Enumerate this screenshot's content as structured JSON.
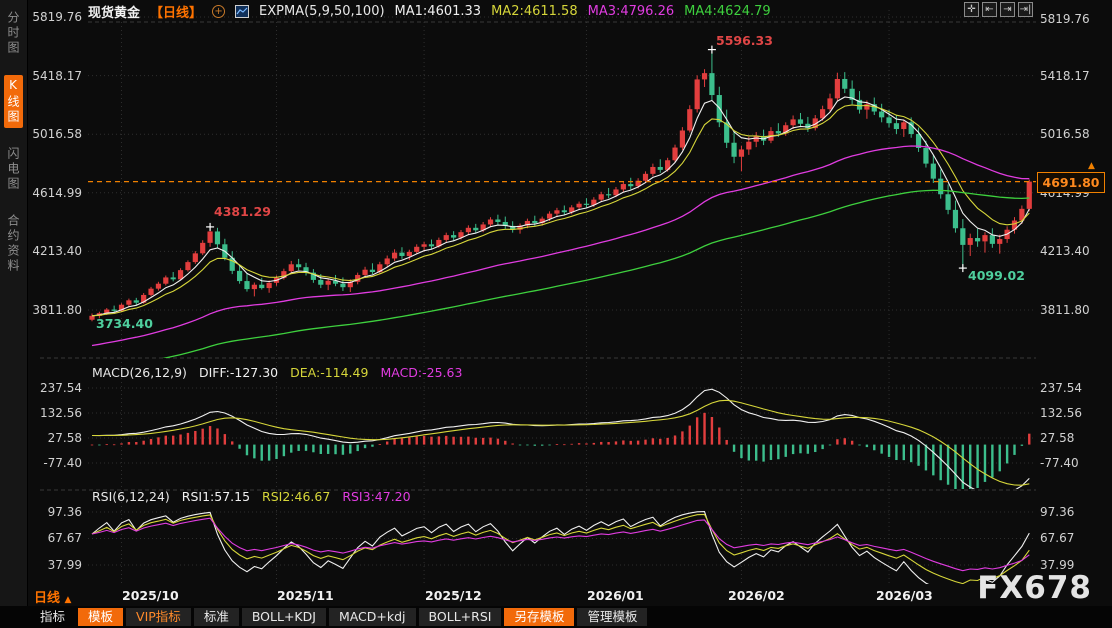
{
  "app": {
    "watermark": "FX678"
  },
  "sidebar": {
    "items": [
      {
        "label": "分时图",
        "active": false
      },
      {
        "label": "K线图",
        "active": true
      },
      {
        "label": "闪电图",
        "active": false
      },
      {
        "label": "合约资料",
        "active": false
      }
    ]
  },
  "header": {
    "symbol": "现货黄金",
    "period": "【日线】",
    "indicator": "EXPMA(5,9,50,100)",
    "ma1": "MA1:4601.33",
    "ma2": "MA2:4611.58",
    "ma3": "MA3:4796.26",
    "ma4": "MA4:4624.79"
  },
  "axes": {
    "price": [
      "5819.76",
      "5418.17",
      "5016.58",
      "4614.99",
      "4213.40",
      "3811.80"
    ],
    "macd": [
      "237.54",
      "132.56",
      "27.58",
      "-77.40"
    ],
    "rsi": [
      "97.36",
      "67.67",
      "37.99"
    ],
    "dates": [
      "2025/10",
      "2025/11",
      "2025/12",
      "2026/01",
      "2026/02",
      "2026/03"
    ]
  },
  "annotations": {
    "high1": "4381.29",
    "high2": "5596.33",
    "low1": "4099.02",
    "low2": "3734.40",
    "last_price": "4691.80"
  },
  "macd_panel": {
    "title": "MACD(26,12,9)",
    "diff": "DIFF:-127.30",
    "dea": "DEA:-114.49",
    "macd": "MACD:-25.63"
  },
  "rsi_panel": {
    "title": "RSI(6,12,24)",
    "rsi1": "RSI1:57.15",
    "rsi2": "RSI2:46.67",
    "rsi3": "RSI3:47.20"
  },
  "bottom": {
    "period_label": "日线",
    "tabs": [
      {
        "label": "指标",
        "style": "plain"
      },
      {
        "label": "模板",
        "style": "orange"
      },
      {
        "label": "VIP指标",
        "style": "vip"
      },
      {
        "label": "标准",
        "style": "dark"
      },
      {
        "label": "BOLL+KDJ",
        "style": "dark"
      },
      {
        "label": "MACD+kdj",
        "style": "dark"
      },
      {
        "label": "BOLL+RSI",
        "style": "dark"
      },
      {
        "label": "另存模板",
        "style": "orange"
      },
      {
        "label": "管理模板",
        "style": "dark"
      }
    ]
  },
  "colors": {
    "up": "#e23e3e",
    "down": "#3cbe8c",
    "ma1": "#f0f0f0",
    "ma2": "#d6d63a",
    "ma3": "#e03ce0",
    "ma4": "#3ed03e",
    "accent": "#f08000",
    "grid": "#2e2e2e"
  },
  "chart_data": {
    "type": "candlestick",
    "symbol": "现货黄金",
    "period": "日线",
    "last_price": 4691.8,
    "price_levels": [
      5819.76,
      5418.17,
      5016.58,
      4614.99,
      4213.4,
      3811.8
    ],
    "macd_levels": [
      237.54,
      132.56,
      27.58,
      -77.4
    ],
    "rsi_levels": [
      97.36,
      67.67,
      37.99
    ],
    "month_start_indices": [
      4,
      25,
      45,
      67,
      88,
      108
    ],
    "expma_periods": [
      5,
      9,
      50,
      100
    ],
    "macd_params": [
      26,
      12,
      9
    ],
    "rsi_periods": [
      6,
      12,
      24
    ],
    "markers": [
      {
        "i": 16,
        "price": 4381.29
      },
      {
        "i": 84,
        "price": 5596.33
      },
      {
        "i": 118,
        "price": 4099.02
      }
    ],
    "candles": [
      [
        3745,
        3788,
        3734.4,
        3772
      ],
      [
        3772,
        3800,
        3755,
        3790
      ],
      [
        3790,
        3825,
        3778,
        3815
      ],
      [
        3815,
        3842,
        3798,
        3806
      ],
      [
        3806,
        3858,
        3800,
        3848
      ],
      [
        3848,
        3890,
        3836,
        3878
      ],
      [
        3878,
        3895,
        3845,
        3862
      ],
      [
        3862,
        3928,
        3855,
        3915
      ],
      [
        3915,
        3970,
        3905,
        3958
      ],
      [
        3958,
        4005,
        3945,
        3992
      ],
      [
        3992,
        4048,
        3980,
        4035
      ],
      [
        4035,
        4072,
        4008,
        4022
      ],
      [
        4022,
        4098,
        4015,
        4085
      ],
      [
        4085,
        4152,
        4075,
        4140
      ],
      [
        4140,
        4215,
        4128,
        4200
      ],
      [
        4200,
        4290,
        4188,
        4272
      ],
      [
        4272,
        4381.3,
        4245,
        4350
      ],
      [
        4350,
        4375,
        4240,
        4262
      ],
      [
        4262,
        4300,
        4152,
        4170
      ],
      [
        4170,
        4215,
        4058,
        4080
      ],
      [
        4080,
        4120,
        3992,
        4010
      ],
      [
        4010,
        4062,
        3938,
        3955
      ],
      [
        3955,
        4000,
        3905,
        3985
      ],
      [
        3985,
        4032,
        3952,
        3962
      ],
      [
        3962,
        4015,
        3930,
        3998
      ],
      [
        3998,
        4048,
        3978,
        4032
      ],
      [
        4032,
        4095,
        4020,
        4078
      ],
      [
        4078,
        4148,
        4062,
        4125
      ],
      [
        4125,
        4162,
        4085,
        4105
      ],
      [
        4105,
        4135,
        4048,
        4068
      ],
      [
        4068,
        4092,
        3998,
        4018
      ],
      [
        4018,
        4058,
        3962,
        3985
      ],
      [
        3985,
        4028,
        3948,
        4012
      ],
      [
        4012,
        4052,
        3975,
        3992
      ],
      [
        3992,
        4035,
        3942,
        3968
      ],
      [
        3968,
        4022,
        3935,
        4005
      ],
      [
        4005,
        4068,
        3988,
        4052
      ],
      [
        4052,
        4108,
        4035,
        4088
      ],
      [
        4088,
        4132,
        4058,
        4072
      ],
      [
        4072,
        4142,
        4060,
        4125
      ],
      [
        4125,
        4185,
        4108,
        4165
      ],
      [
        4165,
        4228,
        4148,
        4205
      ],
      [
        4205,
        4242,
        4162,
        4182
      ],
      [
        4182,
        4225,
        4155,
        4210
      ],
      [
        4210,
        4262,
        4195,
        4245
      ],
      [
        4245,
        4280,
        4212,
        4262
      ],
      [
        4262,
        4295,
        4230,
        4248
      ],
      [
        4248,
        4308,
        4238,
        4292
      ],
      [
        4292,
        4342,
        4275,
        4325
      ],
      [
        4325,
        4352,
        4288,
        4308
      ],
      [
        4308,
        4360,
        4295,
        4345
      ],
      [
        4345,
        4392,
        4328,
        4375
      ],
      [
        4375,
        4402,
        4338,
        4358
      ],
      [
        4358,
        4415,
        4345,
        4398
      ],
      [
        4398,
        4448,
        4382,
        4432
      ],
      [
        4432,
        4465,
        4395,
        4415
      ],
      [
        4415,
        4452,
        4368,
        4388
      ],
      [
        4388,
        4420,
        4342,
        4362
      ],
      [
        4362,
        4405,
        4335,
        4390
      ],
      [
        4390,
        4438,
        4372,
        4422
      ],
      [
        4422,
        4458,
        4388,
        4408
      ],
      [
        4408,
        4452,
        4390,
        4438
      ],
      [
        4438,
        4488,
        4422,
        4472
      ],
      [
        4472,
        4512,
        4448,
        4495
      ],
      [
        4495,
        4528,
        4462,
        4482
      ],
      [
        4482,
        4530,
        4468,
        4515
      ],
      [
        4515,
        4555,
        4498,
        4540
      ],
      [
        4540,
        4578,
        4512,
        4532
      ],
      [
        4532,
        4585,
        4518,
        4568
      ],
      [
        4568,
        4622,
        4552,
        4605
      ],
      [
        4605,
        4648,
        4578,
        4598
      ],
      [
        4598,
        4655,
        4585,
        4638
      ],
      [
        4638,
        4692,
        4622,
        4675
      ],
      [
        4675,
        4718,
        4638,
        4660
      ],
      [
        4660,
        4715,
        4645,
        4698
      ],
      [
        4698,
        4762,
        4682,
        4745
      ],
      [
        4745,
        4815,
        4728,
        4792
      ],
      [
        4792,
        4845,
        4752,
        4772
      ],
      [
        4772,
        4855,
        4760,
        4838
      ],
      [
        4838,
        4945,
        4822,
        4925
      ],
      [
        4925,
        5065,
        4908,
        5042
      ],
      [
        5042,
        5215,
        5028,
        5188
      ],
      [
        5188,
        5420,
        5165,
        5392
      ],
      [
        5392,
        5462,
        5340,
        5435
      ],
      [
        5435,
        5596.3,
        5248,
        5285
      ],
      [
        5285,
        5342,
        5065,
        5098
      ],
      [
        5098,
        5185,
        4922,
        4958
      ],
      [
        4958,
        5042,
        4818,
        4862
      ],
      [
        4862,
        4938,
        4762,
        4912
      ],
      [
        4912,
        4998,
        4875,
        4965
      ],
      [
        4965,
        5032,
        4928,
        5005
      ],
      [
        5005,
        5048,
        4942,
        4972
      ],
      [
        4972,
        5065,
        4955,
        5038
      ],
      [
        5038,
        5092,
        4998,
        5022
      ],
      [
        5022,
        5098,
        5005,
        5078
      ],
      [
        5078,
        5145,
        5052,
        5118
      ],
      [
        5118,
        5162,
        5065,
        5088
      ],
      [
        5088,
        5135,
        5032,
        5058
      ],
      [
        5058,
        5148,
        5042,
        5125
      ],
      [
        5125,
        5212,
        5108,
        5188
      ],
      [
        5188,
        5295,
        5172,
        5262
      ],
      [
        5262,
        5438,
        5245,
        5395
      ],
      [
        5395,
        5442,
        5298,
        5328
      ],
      [
        5328,
        5385,
        5222,
        5252
      ],
      [
        5252,
        5312,
        5158,
        5185
      ],
      [
        5185,
        5248,
        5122,
        5222
      ],
      [
        5222,
        5268,
        5148,
        5172
      ],
      [
        5172,
        5225,
        5098,
        5132
      ],
      [
        5132,
        5185,
        5062,
        5092
      ],
      [
        5092,
        5148,
        5018,
        5052
      ],
      [
        5052,
        5118,
        4998,
        5098
      ],
      [
        5098,
        5132,
        4992,
        5018
      ],
      [
        5018,
        5062,
        4895,
        4922
      ],
      [
        4922,
        4972,
        4788,
        4815
      ],
      [
        4815,
        4872,
        4682,
        4712
      ],
      [
        4712,
        4775,
        4575,
        4605
      ],
      [
        4605,
        4672,
        4468,
        4498
      ],
      [
        4498,
        4562,
        4342,
        4372
      ],
      [
        4372,
        4435,
        4099,
        4258
      ],
      [
        4258,
        4335,
        4182,
        4305
      ],
      [
        4305,
        4368,
        4245,
        4282
      ],
      [
        4282,
        4345,
        4205,
        4325
      ],
      [
        4325,
        4372,
        4238,
        4265
      ],
      [
        4265,
        4328,
        4198,
        4298
      ],
      [
        4298,
        4385,
        4272,
        4362
      ],
      [
        4362,
        4448,
        4335,
        4425
      ],
      [
        4425,
        4528,
        4402,
        4505
      ],
      [
        4505,
        4705,
        4488,
        4691.8
      ]
    ]
  }
}
